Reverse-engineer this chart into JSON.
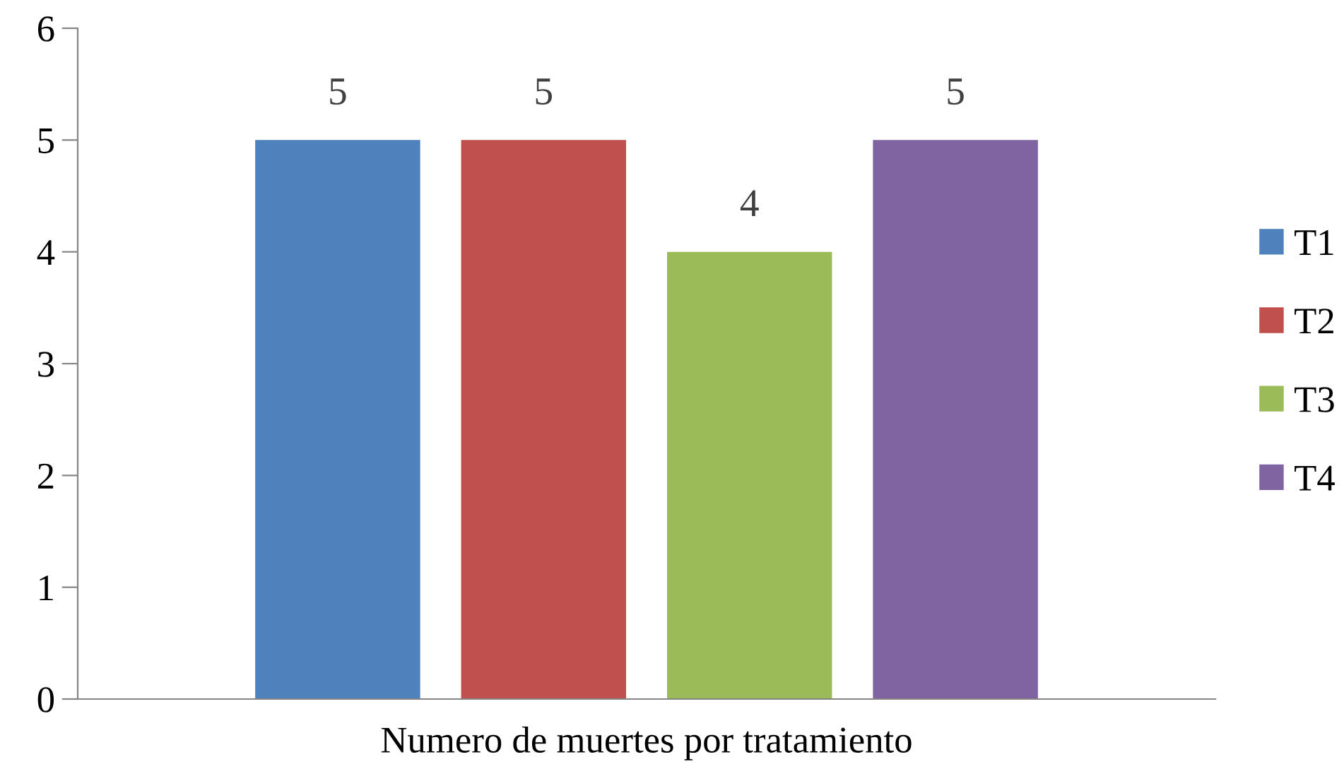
{
  "chart_data": {
    "type": "bar",
    "categories": [
      "Numero de muertes por tratamiento"
    ],
    "series": [
      {
        "name": "T1",
        "color": "#4f81bd",
        "values": [
          5
        ]
      },
      {
        "name": "T2",
        "color": "#c0504d",
        "values": [
          5
        ]
      },
      {
        "name": "T3",
        "color": "#9bbb59",
        "values": [
          4
        ]
      },
      {
        "name": "T4",
        "color": "#8064a2",
        "values": [
          5
        ]
      }
    ],
    "ylim": [
      0,
      6
    ],
    "yticks": [
      0,
      1,
      2,
      3,
      4,
      5,
      6
    ],
    "grid": false,
    "legend": "right",
    "data_labels": true
  }
}
